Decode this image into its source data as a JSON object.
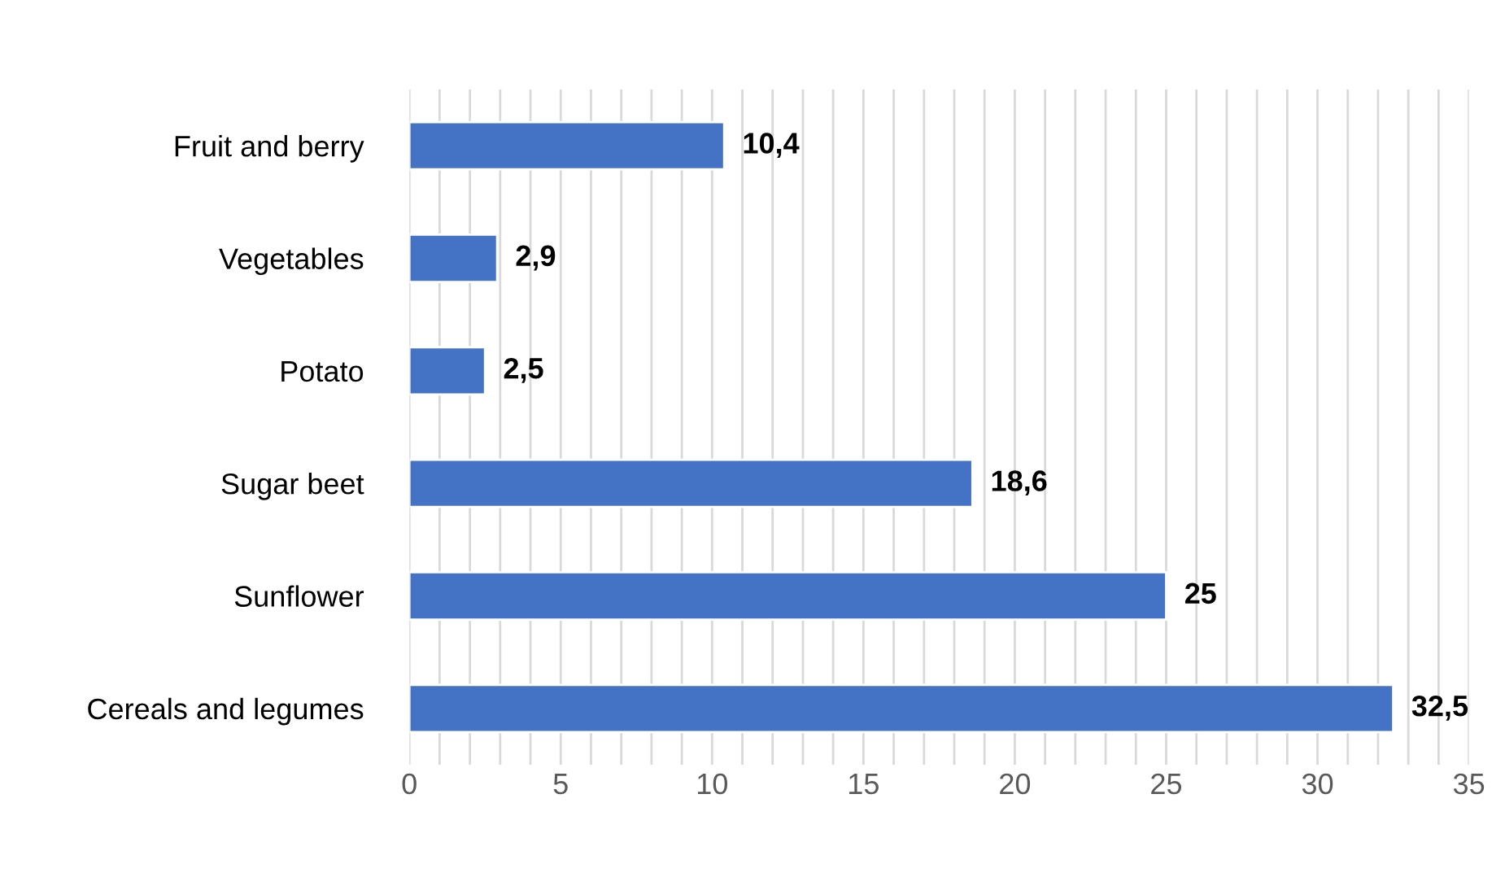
{
  "chart_data": {
    "type": "bar",
    "orientation": "horizontal",
    "categories": [
      "Fruit and berry",
      "Vegetables",
      "Potato",
      "Sugar beet",
      "Sunflower",
      "Cereals and legumes"
    ],
    "values": [
      10.4,
      2.9,
      2.5,
      18.6,
      25,
      32.5
    ],
    "value_labels": [
      "10,4",
      "2,9",
      "2,5",
      "18,6",
      "25",
      "32,5"
    ],
    "color": "#4472c4",
    "xlim": [
      0,
      35
    ],
    "xticks": [
      0,
      {
        "value": 1,
        "label": null
      },
      {
        "value": 2,
        "label": null
      },
      {
        "value": 3,
        "label": null
      },
      {
        "value": 4,
        "label": null
      },
      5,
      {
        "value": 6,
        "label": null
      },
      {
        "value": 7,
        "label": null
      },
      {
        "value": 8,
        "label": null
      },
      {
        "value": 9,
        "label": null
      },
      10,
      {
        "value": 11,
        "label": null
      },
      {
        "value": 12,
        "label": null
      },
      {
        "value": 13,
        "label": null
      },
      {
        "value": 14,
        "label": null
      },
      15,
      {
        "value": 16,
        "label": null
      },
      {
        "value": 17,
        "label": null
      },
      {
        "value": 18,
        "label": null
      },
      {
        "value": 19,
        "label": null
      },
      20,
      {
        "value": 21,
        "label": null
      },
      {
        "value": 22,
        "label": null
      },
      {
        "value": 23,
        "label": null
      },
      {
        "value": 24,
        "label": null
      },
      25,
      {
        "value": 26,
        "label": null
      },
      {
        "value": 27,
        "label": null
      },
      {
        "value": 28,
        "label": null
      },
      {
        "value": 29,
        "label": null
      },
      30,
      {
        "value": 31,
        "label": null
      },
      {
        "value": 32,
        "label": null
      },
      {
        "value": 33,
        "label": null
      },
      {
        "value": 34,
        "label": null
      },
      35
    ],
    "grid": "x"
  }
}
